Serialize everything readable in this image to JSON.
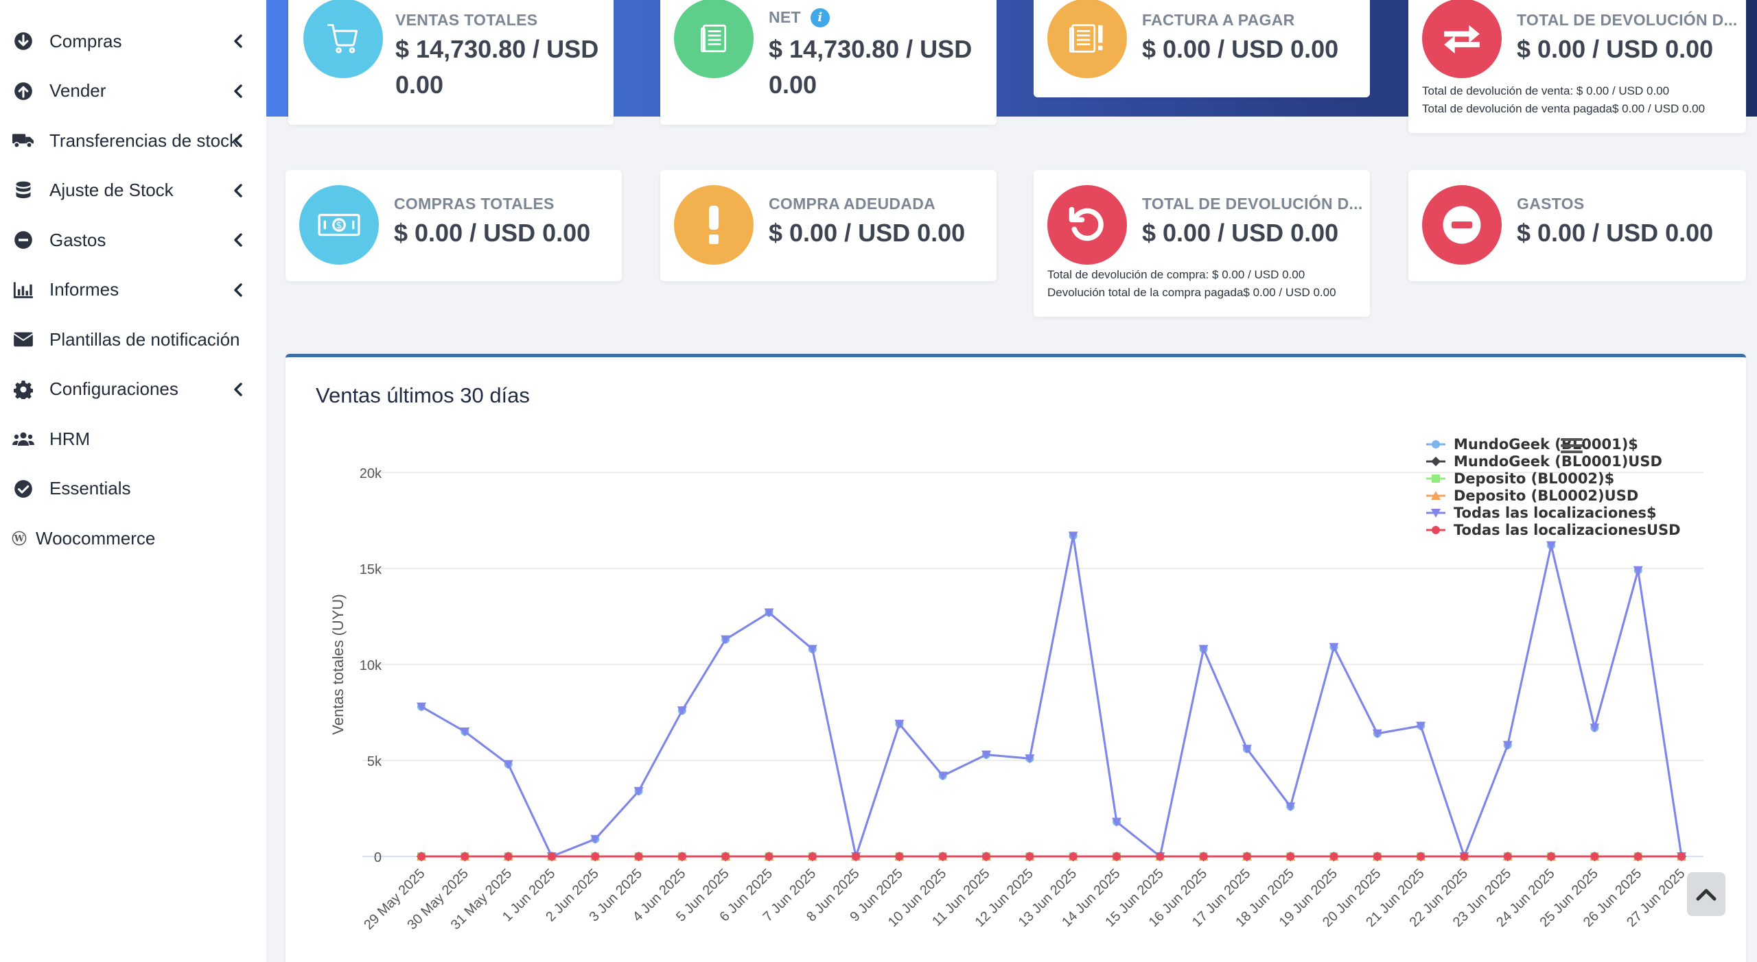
{
  "sidebar": {
    "items": [
      {
        "label": "Compras",
        "icon": "arrow-circle-down-icon",
        "has_chevron": true
      },
      {
        "label": "Vender",
        "icon": "arrow-circle-up-icon",
        "has_chevron": true
      },
      {
        "label": "Transferencias de stock",
        "icon": "truck-icon",
        "has_chevron": true
      },
      {
        "label": "Ajuste de Stock",
        "icon": "database-icon",
        "has_chevron": true
      },
      {
        "label": "Gastos",
        "icon": "minus-circle-icon",
        "has_chevron": true
      },
      {
        "label": "Informes",
        "icon": "bar-chart-icon",
        "has_chevron": true
      },
      {
        "label": "Plantillas de notificación",
        "icon": "envelope-icon",
        "has_chevron": false
      },
      {
        "label": "Configuraciones",
        "icon": "gear-icon",
        "has_chevron": true
      },
      {
        "label": "HRM",
        "icon": "users-icon",
        "has_chevron": false
      },
      {
        "label": "Essentials",
        "icon": "check-circle-icon",
        "has_chevron": false
      },
      {
        "label": "Woocommerce",
        "icon": "wordpress-icon",
        "has_chevron": false
      }
    ]
  },
  "cards": {
    "ventas_totales": {
      "title": "VENTAS TOTALES",
      "value": "$ 14,730.80 / USD 0.00",
      "color": "#5bc8ea",
      "icon": "cart-icon"
    },
    "net": {
      "title": "NET",
      "value": "$ 14,730.80 / USD 0.00",
      "color": "#5ecf8a",
      "icon": "document-icon",
      "info": "i"
    },
    "factura_a_pagar": {
      "title": "FACTURA A PAGAR",
      "value": "$ 0.00 / USD 0.00",
      "color": "#f3b04f",
      "icon": "invoice-alert-icon"
    },
    "total_devolucion_venta": {
      "title": "TOTAL DE DEVOLUCIÓN D...",
      "value": "$ 0.00 / USD 0.00",
      "color": "#e5485d",
      "icon": "exchange-icon",
      "note1": "Total de devolución de venta: $ 0.00 / USD 0.00",
      "note2": "Total de devolución de venta pagada$ 0.00 / USD 0.00"
    },
    "compras_totales": {
      "title": "COMPRAS TOTALES",
      "value": "$ 0.00 / USD 0.00",
      "color": "#5bc8ea",
      "icon": "money-icon"
    },
    "compra_adeudada": {
      "title": "COMPRA ADEUDADA",
      "value": "$ 0.00 / USD 0.00",
      "color": "#f3b04f",
      "icon": "exclamation-icon"
    },
    "total_devolucion_compra": {
      "title": "TOTAL DE DEVOLUCIÓN D...",
      "value": "$ 0.00 / USD 0.00",
      "color": "#e5485d",
      "icon": "undo-icon",
      "note1": "Total de devolución de compra: $ 0.00 / USD 0.00",
      "note2": "Devolución total de la compra pagada$ 0.00 / USD 0.00"
    },
    "gastos": {
      "title": "GASTOS",
      "value": "$ 0.00 / USD 0.00",
      "color": "#e5485d",
      "icon": "minus-circle-icon"
    }
  },
  "chart_panel": {
    "title": "Ventas últimos 30 días",
    "menu_icon": "hamburger-menu-icon"
  },
  "scroll_top": {
    "icon": "chevron-up-icon"
  },
  "chart_data": {
    "type": "line",
    "title": "",
    "xlabel": "",
    "ylabel": "Ventas totales (UYU)",
    "ylim": [
      0,
      20000
    ],
    "yticks": [
      0,
      5000,
      10000,
      15000,
      20000
    ],
    "ytick_labels": [
      "0",
      "5k",
      "10k",
      "15k",
      "20k"
    ],
    "grid": true,
    "legend_position": "top-right",
    "categories": [
      "29 May 2025",
      "30 May 2025",
      "31 May 2025",
      "1 Jun 2025",
      "2 Jun 2025",
      "3 Jun 2025",
      "4 Jun 2025",
      "5 Jun 2025",
      "6 Jun 2025",
      "7 Jun 2025",
      "8 Jun 2025",
      "9 Jun 2025",
      "10 Jun 2025",
      "11 Jun 2025",
      "12 Jun 2025",
      "13 Jun 2025",
      "14 Jun 2025",
      "15 Jun 2025",
      "16 Jun 2025",
      "17 Jun 2025",
      "18 Jun 2025",
      "19 Jun 2025",
      "20 Jun 2025",
      "21 Jun 2025",
      "22 Jun 2025",
      "23 Jun 2025",
      "24 Jun 2025",
      "25 Jun 2025",
      "26 Jun 2025",
      "27 Jun 2025"
    ],
    "series": [
      {
        "name": "MundoGeek (BL0001)$",
        "color": "#7cb5ec",
        "marker": "circle",
        "values": [
          7800,
          6500,
          4800,
          0,
          900,
          3400,
          7600,
          11300,
          12700,
          10800,
          0,
          6900,
          4200,
          5300,
          5100,
          16700,
          1800,
          0,
          10800,
          5600,
          2600,
          10900,
          6400,
          6800,
          0,
          5800,
          16200,
          6700,
          14900,
          0
        ]
      },
      {
        "name": "MundoGeek (BL0001)USD",
        "color": "#434348",
        "marker": "diamond",
        "values": [
          0,
          0,
          0,
          0,
          0,
          0,
          0,
          0,
          0,
          0,
          0,
          0,
          0,
          0,
          0,
          0,
          0,
          0,
          0,
          0,
          0,
          0,
          0,
          0,
          0,
          0,
          0,
          0,
          0,
          0
        ]
      },
      {
        "name": "Deposito (BL0002)$",
        "color": "#90ed7d",
        "marker": "square",
        "values": [
          0,
          0,
          0,
          0,
          0,
          0,
          0,
          0,
          0,
          0,
          0,
          0,
          0,
          0,
          0,
          0,
          0,
          0,
          0,
          0,
          0,
          0,
          0,
          0,
          0,
          0,
          0,
          0,
          0,
          0
        ]
      },
      {
        "name": "Deposito (BL0002)USD",
        "color": "#f7a35c",
        "marker": "triangle",
        "values": [
          0,
          0,
          0,
          0,
          0,
          0,
          0,
          0,
          0,
          0,
          0,
          0,
          0,
          0,
          0,
          0,
          0,
          0,
          0,
          0,
          0,
          0,
          0,
          0,
          0,
          0,
          0,
          0,
          0,
          0
        ]
      },
      {
        "name": "Todas las localizaciones$",
        "color": "#8085e9",
        "marker": "triangle-down",
        "values": [
          7800,
          6500,
          4800,
          0,
          900,
          3400,
          7600,
          11300,
          12700,
          10800,
          0,
          6900,
          4200,
          5300,
          5100,
          16700,
          1800,
          0,
          10800,
          5600,
          2600,
          10900,
          6400,
          6800,
          0,
          5800,
          16200,
          6700,
          14900,
          0
        ]
      },
      {
        "name": "Todas las localizacionesUSD",
        "color": "#e5485d",
        "marker": "circle",
        "values": [
          0,
          0,
          0,
          0,
          0,
          0,
          0,
          0,
          0,
          0,
          0,
          0,
          0,
          0,
          0,
          0,
          0,
          0,
          0,
          0,
          0,
          0,
          0,
          0,
          0,
          0,
          0,
          0,
          0,
          0
        ]
      }
    ]
  }
}
